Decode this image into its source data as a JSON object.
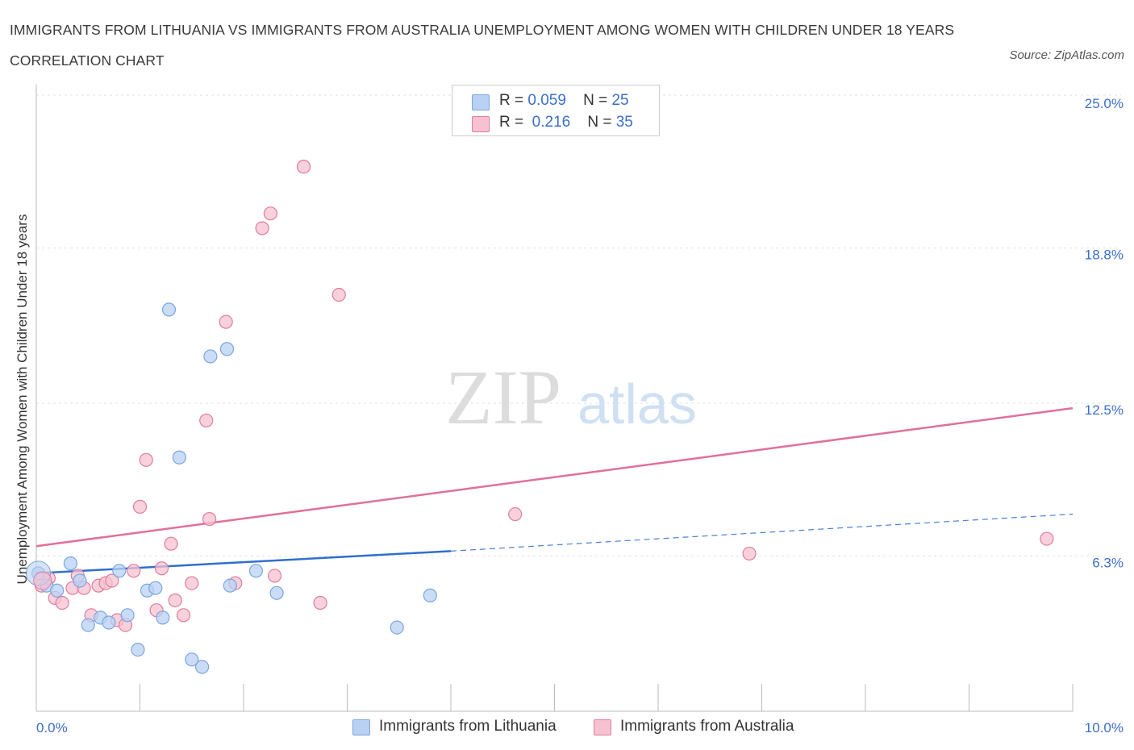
{
  "title": "IMMIGRANTS FROM LITHUANIA VS IMMIGRANTS FROM AUSTRALIA UNEMPLOYMENT AMONG WOMEN WITH CHILDREN UNDER 18 YEARS CORRELATION CHART",
  "source": "Source: ZipAtlas.com",
  "watermark": {
    "zip": "ZIP",
    "atlas": "atlas"
  },
  "legend": {
    "rows": [
      {
        "r_label": "R =",
        "r_value": "0.059",
        "n_label": "N =",
        "n_value": "25"
      },
      {
        "r_label": "R =",
        "r_value": "0.216",
        "n_label": "N =",
        "n_value": "35"
      }
    ]
  },
  "chart_data": {
    "type": "scatter",
    "title": "IMMIGRANTS FROM LITHUANIA VS IMMIGRANTS FROM AUSTRALIA UNEMPLOYMENT AMONG WOMEN WITH CHILDREN UNDER 18 YEARS CORRELATION CHART",
    "xlabel": "",
    "ylabel": "Unemployment Among Women with Children Under 18 years",
    "xlim": [
      0,
      10
    ],
    "ylim": [
      0,
      25
    ],
    "x_tick_labels": [
      {
        "value": 0,
        "label": "0.0%"
      },
      {
        "value": 10,
        "label": "10.0%"
      }
    ],
    "y_tick_labels": [
      {
        "value": 6.3,
        "label": "6.3%"
      },
      {
        "value": 12.5,
        "label": "12.5%"
      },
      {
        "value": 18.8,
        "label": "18.8%"
      },
      {
        "value": 25.0,
        "label": "25.0%"
      }
    ],
    "x_minor_ticks": [
      1,
      2,
      3,
      4,
      5,
      6,
      7,
      8,
      9,
      10
    ],
    "grid": true,
    "series": [
      {
        "name": "Immigrants from Lithuania",
        "color": "#7aa6e0",
        "fill": "#b9d1f3",
        "points": [
          [
            0.02,
            5.6
          ],
          [
            0.1,
            5.1
          ],
          [
            0.2,
            4.9
          ],
          [
            0.33,
            6.0
          ],
          [
            0.42,
            5.3
          ],
          [
            0.5,
            3.5
          ],
          [
            0.62,
            3.8
          ],
          [
            0.7,
            3.6
          ],
          [
            0.8,
            5.7
          ],
          [
            0.88,
            3.9
          ],
          [
            0.98,
            2.5
          ],
          [
            1.07,
            4.9
          ],
          [
            1.15,
            5.0
          ],
          [
            1.22,
            3.8
          ],
          [
            1.28,
            16.3
          ],
          [
            1.38,
            10.3
          ],
          [
            1.5,
            2.1
          ],
          [
            1.6,
            1.8
          ],
          [
            1.68,
            14.4
          ],
          [
            1.84,
            14.7
          ],
          [
            1.87,
            5.1
          ],
          [
            2.12,
            5.7
          ],
          [
            2.32,
            4.8
          ],
          [
            3.8,
            4.7
          ],
          [
            3.48,
            3.4
          ]
        ],
        "trend": {
          "x0": 0,
          "y0": 5.6,
          "x1": 4.0,
          "y1": 6.5,
          "dash_x1": 10,
          "dash_y1": 8.0
        }
      },
      {
        "name": "Immigrants from Australia",
        "color": "#e07d9c",
        "fill": "#f6c2d2",
        "points": [
          [
            0.05,
            5.1
          ],
          [
            0.12,
            5.4
          ],
          [
            0.18,
            4.6
          ],
          [
            0.25,
            4.4
          ],
          [
            0.35,
            5.0
          ],
          [
            0.4,
            5.5
          ],
          [
            0.46,
            5.0
          ],
          [
            0.53,
            3.9
          ],
          [
            0.6,
            5.1
          ],
          [
            0.67,
            5.2
          ],
          [
            0.73,
            5.3
          ],
          [
            0.78,
            3.7
          ],
          [
            0.86,
            3.5
          ],
          [
            0.94,
            5.7
          ],
          [
            1.0,
            8.3
          ],
          [
            1.06,
            10.2
          ],
          [
            1.16,
            4.1
          ],
          [
            1.21,
            5.8
          ],
          [
            1.3,
            6.8
          ],
          [
            1.34,
            4.5
          ],
          [
            1.42,
            3.9
          ],
          [
            1.5,
            5.2
          ],
          [
            1.64,
            11.8
          ],
          [
            1.67,
            7.8
          ],
          [
            1.83,
            15.8
          ],
          [
            1.92,
            5.2
          ],
          [
            2.18,
            19.6
          ],
          [
            2.26,
            20.2
          ],
          [
            2.3,
            5.5
          ],
          [
            2.58,
            22.1
          ],
          [
            2.74,
            4.4
          ],
          [
            2.92,
            16.9
          ],
          [
            4.62,
            8.0
          ],
          [
            6.88,
            6.4
          ],
          [
            9.75,
            7.0
          ]
        ],
        "trend": {
          "x0": 0,
          "y0": 6.7,
          "x1": 10,
          "y1": 12.3
        }
      }
    ]
  }
}
